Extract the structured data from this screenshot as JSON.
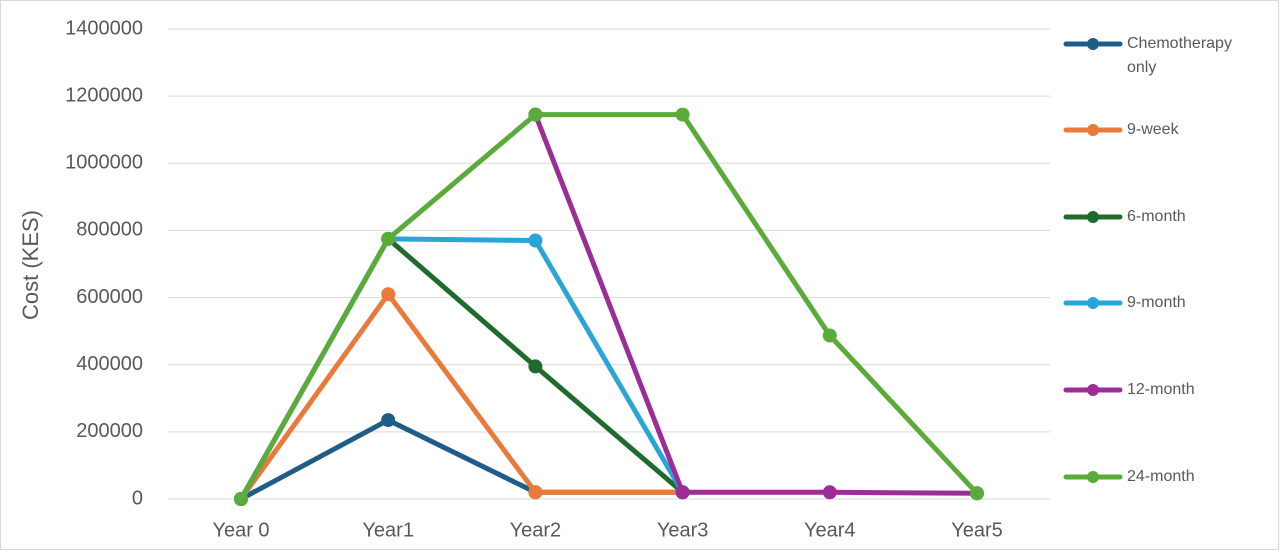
{
  "chart_data": {
    "type": "line",
    "title": "",
    "xlabel": "",
    "ylabel": "Cost (KES)",
    "categories": [
      "Year 0",
      "Year1",
      "Year2",
      "Year3",
      "Year4",
      "Year5"
    ],
    "ylim": [
      0,
      1400000
    ],
    "yticks": [
      0,
      200000,
      400000,
      600000,
      800000,
      1000000,
      1200000,
      1400000
    ],
    "grid": true,
    "legend": "right",
    "series": [
      {
        "name": "Chemotherapy only",
        "name_lines": [
          "Chemotherapy",
          "only"
        ],
        "color": "#1f5c87",
        "values": [
          0,
          235000,
          20000,
          20000,
          null,
          null
        ]
      },
      {
        "name": "9-week",
        "name_lines": [
          "9-week"
        ],
        "color": "#e97a3b",
        "values": [
          0,
          610000,
          20000,
          20000,
          null,
          null
        ]
      },
      {
        "name": "6-month",
        "name_lines": [
          "6-month"
        ],
        "color": "#1f6b2e",
        "values": [
          0,
          775000,
          395000,
          20000,
          null,
          null
        ]
      },
      {
        "name": "9-month",
        "name_lines": [
          "9-month"
        ],
        "color": "#2aa5d8",
        "values": [
          0,
          775000,
          770000,
          20000,
          null,
          null
        ]
      },
      {
        "name": "12-month",
        "name_lines": [
          "12-month"
        ],
        "color": "#9b2d96",
        "values": [
          null,
          null,
          1145000,
          20000,
          20000,
          17000
        ]
      },
      {
        "name": "24-month",
        "name_lines": [
          "24-month"
        ],
        "color": "#5aab3a",
        "values": [
          0,
          775000,
          1145000,
          1145000,
          487000,
          17000
        ]
      }
    ]
  }
}
